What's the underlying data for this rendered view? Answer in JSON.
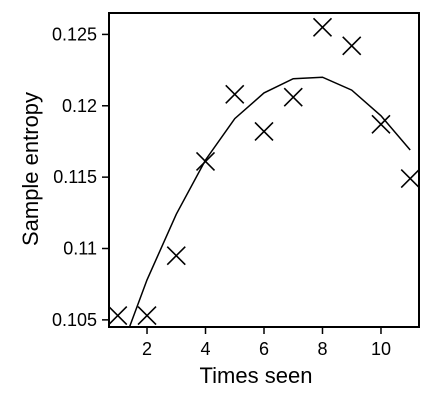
{
  "chart_data": {
    "type": "scatter",
    "xlabel": "Times seen",
    "ylabel": "Sample entropy",
    "xlim": [
      0.7,
      11.3
    ],
    "ylim": [
      0.1045,
      0.1265
    ],
    "x_ticks": [
      2,
      4,
      6,
      8,
      10
    ],
    "x_tick_labels": [
      "2",
      "4",
      "6",
      "8",
      "10"
    ],
    "y_ticks": [
      0.105,
      0.11,
      0.115,
      0.12,
      0.125
    ],
    "y_tick_labels": [
      "0.105",
      "0.11",
      "0.115",
      "0.12",
      "0.125"
    ],
    "grid": false,
    "series": [
      {
        "marker": "x",
        "points": [
          {
            "x": 1,
            "y": 0.1053
          },
          {
            "x": 2,
            "y": 0.1053
          },
          {
            "x": 3,
            "y": 0.1095
          },
          {
            "x": 4,
            "y": 0.1161
          },
          {
            "x": 5,
            "y": 0.1208
          },
          {
            "x": 6,
            "y": 0.1182
          },
          {
            "x": 7,
            "y": 0.1206
          },
          {
            "x": 8,
            "y": 0.1255
          },
          {
            "x": 9,
            "y": 0.1242
          },
          {
            "x": 10,
            "y": 0.1187
          },
          {
            "x": 11,
            "y": 0.1149
          }
        ]
      },
      {
        "style": "line",
        "points": [
          {
            "x": 1.4,
            "y": 0.1045
          },
          {
            "x": 2,
            "y": 0.1078
          },
          {
            "x": 3,
            "y": 0.1124
          },
          {
            "x": 4,
            "y": 0.1162
          },
          {
            "x": 5,
            "y": 0.1191
          },
          {
            "x": 6,
            "y": 0.1209
          },
          {
            "x": 7,
            "y": 0.1219
          },
          {
            "x": 8,
            "y": 0.122
          },
          {
            "x": 9,
            "y": 0.1211
          },
          {
            "x": 10,
            "y": 0.1193
          },
          {
            "x": 11,
            "y": 0.1169
          }
        ]
      }
    ]
  }
}
